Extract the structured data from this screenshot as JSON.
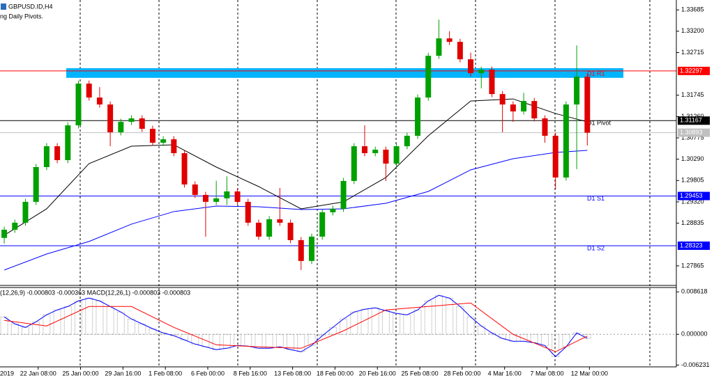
{
  "chart_data": [
    {
      "type": "candlestick",
      "title": "GBPUSD.ID,H4",
      "subtitle": "ng Daily Pivots.",
      "up_color": "#00a000",
      "down_color": "#e00000",
      "open": [
        1.285,
        1.28687,
        1.28846,
        1.2932,
        1.30111,
        1.30585,
        1.30269,
        1.3106,
        1.32009,
        1.31692,
        1.31534,
        1.30902,
        1.31139,
        1.31218,
        1.30981,
        1.30664,
        1.30743,
        1.30427,
        1.29715,
        1.29478,
        1.2932,
        1.294,
        1.29557,
        1.2932,
        1.28846,
        1.28529,
        1.28925,
        1.28846,
        1.2845,
        1.27976,
        1.28529,
        1.29083,
        1.29162,
        1.29795,
        1.30585,
        1.30427,
        1.30506,
        1.3019,
        1.30585,
        1.30822,
        1.31692,
        1.32641,
        1.33037,
        1.32958,
        1.32562,
        1.32246,
        1.32325,
        1.31771,
        1.31534,
        1.31376,
        1.31613,
        1.31218,
        1.30822,
        1.29874,
        1.31534,
        1.32167
      ],
      "high": [
        1.28757,
        1.28916,
        1.2939,
        1.30181,
        1.30655,
        1.30655,
        1.3113,
        1.32079,
        1.32079,
        1.3193,
        1.31604,
        1.31209,
        1.31288,
        1.31288,
        1.31051,
        1.30813,
        1.30813,
        1.30497,
        1.29785,
        1.29548,
        1.298,
        1.299,
        1.29627,
        1.2939,
        1.28916,
        1.28995,
        1.29637,
        1.28916,
        1.2852,
        1.28599,
        1.29153,
        1.29232,
        1.29865,
        1.30655,
        1.3106,
        1.30576,
        1.30576,
        1.30655,
        1.30892,
        1.31762,
        1.32711,
        1.33464,
        1.332,
        1.33028,
        1.32715,
        1.32395,
        1.32395,
        1.31841,
        1.31604,
        1.318,
        1.31683,
        1.31288,
        1.30892,
        1.31604,
        1.32878,
        1.32237
      ],
      "low": [
        1.28371,
        1.28617,
        1.28776,
        1.2925,
        1.30041,
        1.30199,
        1.30199,
        1.3099,
        1.31622,
        1.31464,
        1.30585,
        1.30832,
        1.31069,
        1.30911,
        1.30594,
        1.30594,
        1.30357,
        1.29645,
        1.29408,
        1.28529,
        1.2925,
        1.2925,
        1.2925,
        1.28776,
        1.28459,
        1.28459,
        1.28776,
        1.2838,
        1.2777,
        1.27906,
        1.28459,
        1.29013,
        1.29092,
        1.29725,
        1.30357,
        1.30357,
        1.29795,
        1.3012,
        1.30515,
        1.30752,
        1.31622,
        1.32571,
        1.32888,
        1.32492,
        1.32176,
        1.319,
        1.31701,
        1.30902,
        1.31139,
        1.31306,
        1.31148,
        1.30664,
        1.29605,
        1.29804,
        1.30063,
        1.306
      ],
      "close": [
        1.28687,
        1.28846,
        1.2932,
        1.30111,
        1.30585,
        1.30269,
        1.3106,
        1.32009,
        1.31692,
        1.31534,
        1.30902,
        1.31139,
        1.31218,
        1.30981,
        1.30664,
        1.30743,
        1.30427,
        1.29715,
        1.29478,
        1.2932,
        1.294,
        1.29557,
        1.2932,
        1.28846,
        1.28529,
        1.28925,
        1.28846,
        1.2845,
        1.27976,
        1.28529,
        1.29083,
        1.29162,
        1.29795,
        1.30585,
        1.30427,
        1.30506,
        1.3019,
        1.30585,
        1.30822,
        1.31692,
        1.32641,
        1.33037,
        1.32958,
        1.32562,
        1.32246,
        1.32325,
        1.31771,
        1.31534,
        1.31376,
        1.31613,
        1.31218,
        1.30822,
        1.29874,
        1.31534,
        1.32167,
        1.30893
      ],
      "ma": [
        {
          "color": "#000000",
          "x": [
            0,
            4,
            8,
            12,
            16,
            20,
            24,
            28,
            32,
            36,
            40,
            44,
            48,
            52,
            55
          ],
          "values": [
            1.28561,
            1.29162,
            1.3019,
            1.30585,
            1.30617,
            1.30111,
            1.29668,
            1.29162,
            1.2932,
            1.29874,
            1.30822,
            1.31613,
            1.31661,
            1.31329,
            1.31139
          ]
        },
        {
          "color": "#0000ff",
          "x": [
            0,
            4,
            8,
            12,
            16,
            20,
            24,
            28,
            32,
            36,
            40,
            44,
            48,
            52,
            55
          ],
          "values": [
            1.2777,
            1.28134,
            1.28419,
            1.28814,
            1.29099,
            1.29225,
            1.29209,
            1.29146,
            1.29162,
            1.29288,
            1.29557,
            1.30048,
            1.30301,
            1.30443,
            1.3049
          ]
        }
      ],
      "zone": {
        "x": [
          5.85,
          58.4
        ],
        "y": [
          1.3214,
          1.3236
        ],
        "color": "#00b4ff"
      },
      "levels": [
        {
          "label": "D1 R1",
          "value": 1.32297,
          "color": "#ff0000"
        },
        {
          "label": "D1 Pivot",
          "value": 1.31167,
          "color": "#000000"
        },
        {
          "label": "D1 S1",
          "value": 1.29453,
          "color": "#0000ff"
        },
        {
          "label": "D1 S2",
          "value": 1.28323,
          "color": "#0000ff"
        }
      ],
      "last_price": {
        "value": 1.30893,
        "color": "#c0c0c0"
      },
      "xlim": [
        -0.4,
        63.4
      ],
      "xticks": [
        {
          "value": -0.8,
          "label": "2019"
        },
        {
          "value": 3.2,
          "label": "22 Jan 08:00"
        },
        {
          "value": 7.2,
          "label": "25 Jan 00:00"
        },
        {
          "value": 11.2,
          "label": "29 Jan 16:00"
        },
        {
          "value": 15.2,
          "label": "1 Feb 08:00"
        },
        {
          "value": 19.2,
          "label": "6 Feb 00:00"
        },
        {
          "value": 23.2,
          "label": "8 Feb 16:00"
        },
        {
          "value": 27.2,
          "label": "13 Feb 08:00"
        },
        {
          "value": 31.2,
          "label": "18 Feb 00:00"
        },
        {
          "value": 35.2,
          "label": "20 Feb 16:00"
        },
        {
          "value": 39.2,
          "label": "25 Feb 08:00"
        },
        {
          "value": 43.2,
          "label": "28 Feb 00:00"
        },
        {
          "value": 47.2,
          "label": "4 Mar 16:00"
        },
        {
          "value": 51.2,
          "label": "7 Mar 08:00"
        },
        {
          "value": 55.2,
          "label": "12 Mar 00:00"
        }
      ],
      "ylim": [
        1.2742,
        1.3391
      ],
      "yticks": [
        1.33685,
        {
          "value": 1.332,
          "label": "1.33200"
        },
        1.32715,
        1.31745,
        {
          "value": 1.3126,
          "label": "1.31260"
        },
        1.30775,
        {
          "value": 1.3029,
          "label": "1.30290"
        },
        1.29805,
        {
          "value": 1.2932,
          "label": "1.29320"
        },
        1.28835,
        1.27865
      ]
    },
    {
      "type": "macd",
      "title": "(12,26,9) -0.000803 -0.000363 MACD(12,26,1) -0.000803 -0.000803",
      "histogram_color": "#a0a0a0",
      "line_color": "#0000ff",
      "signal_color": "#ff0000",
      "values": [
        0.00353,
        0.00212,
        0.00141,
        0.00254,
        0.00396,
        0.00495,
        0.00565,
        0.00678,
        0.00735,
        0.00678,
        0.00565,
        0.00452,
        0.00311,
        0.00212,
        0.00113,
        0.00028,
        -0.00028,
        -0.00113,
        -0.00198,
        -0.00254,
        -0.00311,
        -0.00283,
        -0.00226,
        -0.0024,
        -0.00283,
        -0.00283,
        -0.00254,
        -0.00311,
        -0.00353,
        -0.00226,
        -0.00028,
        0.00141,
        0.00311,
        0.00452,
        0.00509,
        0.00537,
        0.0048,
        0.00424,
        0.00396,
        0.00495,
        0.00678,
        0.00791,
        0.00735,
        0.00565,
        0.00353,
        0.0017,
        0.00028,
        -0.00085,
        -0.00141,
        -0.00141,
        -0.0017,
        -0.00226,
        -0.00452,
        -0.00254,
        0.00028,
        -0.000803
      ],
      "signal": {
        "x": [
          0,
          4,
          8,
          12,
          16,
          20,
          24,
          28,
          32,
          36,
          40,
          44,
          48,
          52,
          55
        ],
        "values": [
          0.00283,
          0.0017,
          0.00565,
          0.00565,
          0.00141,
          -0.00212,
          -0.00254,
          -0.00283,
          0.00071,
          0.00495,
          0.00565,
          0.00636,
          0,
          -0.00353,
          -0.000363
        ]
      },
      "ylim": [
        -0.0066,
        0.0095
      ],
      "yticks": [
        0.008618,
        {
          "value": 0,
          "label": "0.000000"
        },
        -0.006231
      ],
      "zero_line": true
    }
  ]
}
